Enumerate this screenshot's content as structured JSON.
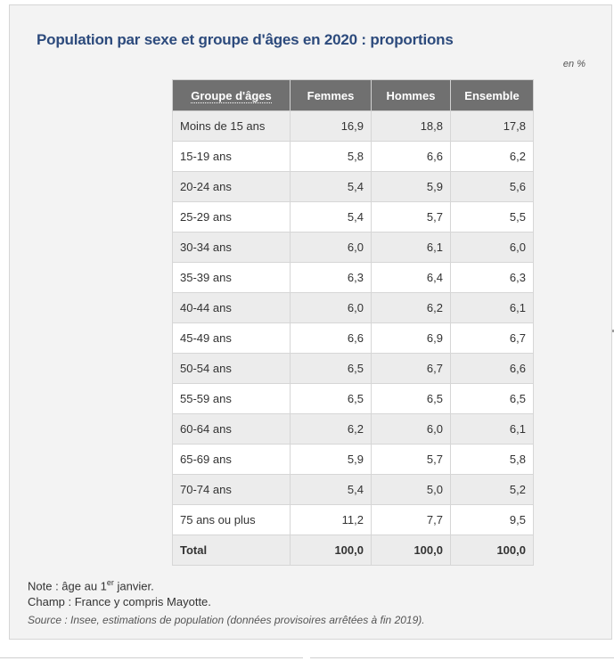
{
  "title": "Population par sexe et groupe d'âges en 2020 : proportions",
  "unit": "en %",
  "headers": {
    "age": "Groupe d'âges",
    "femmes": "Femmes",
    "hommes": "Hommes",
    "ensemble": "Ensemble"
  },
  "rows": [
    {
      "age": "Moins de 15 ans",
      "femmes": "16,9",
      "hommes": "18,8",
      "ensemble": "17,8"
    },
    {
      "age": "15-19 ans",
      "femmes": "5,8",
      "hommes": "6,6",
      "ensemble": "6,2"
    },
    {
      "age": "20-24 ans",
      "femmes": "5,4",
      "hommes": "5,9",
      "ensemble": "5,6"
    },
    {
      "age": "25-29 ans",
      "femmes": "5,4",
      "hommes": "5,7",
      "ensemble": "5,5"
    },
    {
      "age": "30-34 ans",
      "femmes": "6,0",
      "hommes": "6,1",
      "ensemble": "6,0"
    },
    {
      "age": "35-39 ans",
      "femmes": "6,3",
      "hommes": "6,4",
      "ensemble": "6,3"
    },
    {
      "age": "40-44 ans",
      "femmes": "6,0",
      "hommes": "6,2",
      "ensemble": "6,1"
    },
    {
      "age": "45-49 ans",
      "femmes": "6,6",
      "hommes": "6,9",
      "ensemble": "6,7"
    },
    {
      "age": "50-54 ans",
      "femmes": "6,5",
      "hommes": "6,7",
      "ensemble": "6,6"
    },
    {
      "age": "55-59 ans",
      "femmes": "6,5",
      "hommes": "6,5",
      "ensemble": "6,5"
    },
    {
      "age": "60-64 ans",
      "femmes": "6,2",
      "hommes": "6,0",
      "ensemble": "6,1"
    },
    {
      "age": "65-69 ans",
      "femmes": "5,9",
      "hommes": "5,7",
      "ensemble": "5,8"
    },
    {
      "age": "70-74 ans",
      "femmes": "5,4",
      "hommes": "5,0",
      "ensemble": "5,2"
    },
    {
      "age": "75 ans ou plus",
      "femmes": "11,2",
      "hommes": "7,7",
      "ensemble": "9,5"
    }
  ],
  "total": {
    "age": "Total",
    "femmes": "100,0",
    "hommes": "100,0",
    "ensemble": "100,0"
  },
  "notes": {
    "note_prefix": "Note : âge au 1",
    "note_sup": "er",
    "note_suffix": " janvier.",
    "champ": "Champ : France y compris Mayotte.",
    "source": "Source : Insee, estimations de population (données provisoires arrêtées à fin 2019)."
  }
}
